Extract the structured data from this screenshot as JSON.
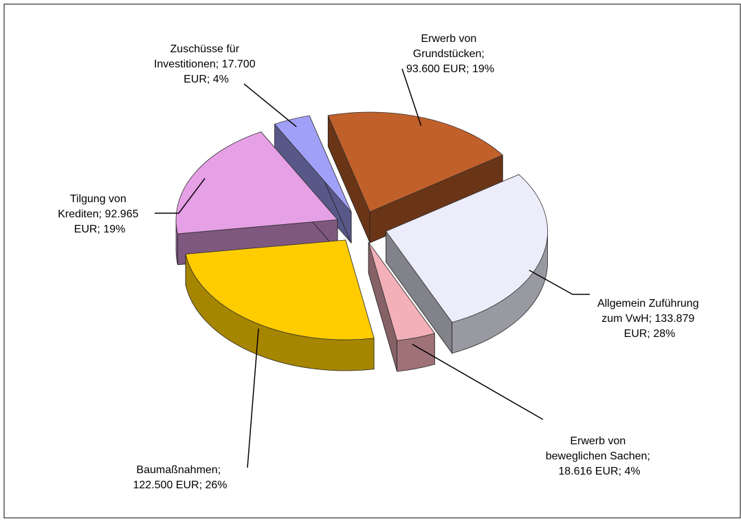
{
  "chart_data": {
    "type": "pie",
    "value_labels": [
      "Erwerb von Grundstücken; 93.600 EUR; 19%",
      "Allgemein Zuführung zum VwH; 133.879 EUR; 28%",
      "Erwerb von beweglichen Sachen; 18.616 EUR; 4%",
      "Baumaßnahmen; 122.500 EUR; 26%",
      "Tilgung von Krediten; 92.965 EUR; 19%",
      "Zuschüsse für Investitionen; 17.700 EUR; 4%"
    ],
    "values": [
      93600,
      133879,
      18616,
      122500,
      92965,
      17700
    ],
    "colors": [
      "#c0602a",
      "#ececfa",
      "#f4b0b8",
      "#ffcc00",
      "#e6a0e6",
      "#a0a0f8"
    ]
  }
}
